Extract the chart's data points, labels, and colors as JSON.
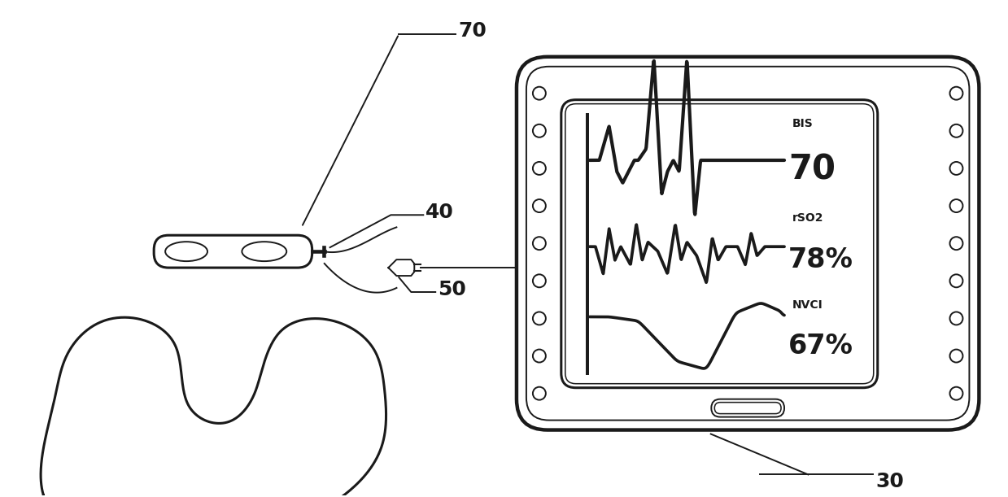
{
  "bg_color": "#ffffff",
  "line_color": "#1a1a1a",
  "label_70": "70",
  "label_40": "40",
  "label_50": "50",
  "label_30": "30",
  "bis_label": "BIS",
  "bis_value": "70",
  "rso2_label": "rSO2",
  "rso2_value": "78%",
  "nvci_label": "NVCI",
  "nvci_value": "67%",
  "lw": 2.2,
  "lw_thin": 1.4,
  "lw_wave": 3.0
}
